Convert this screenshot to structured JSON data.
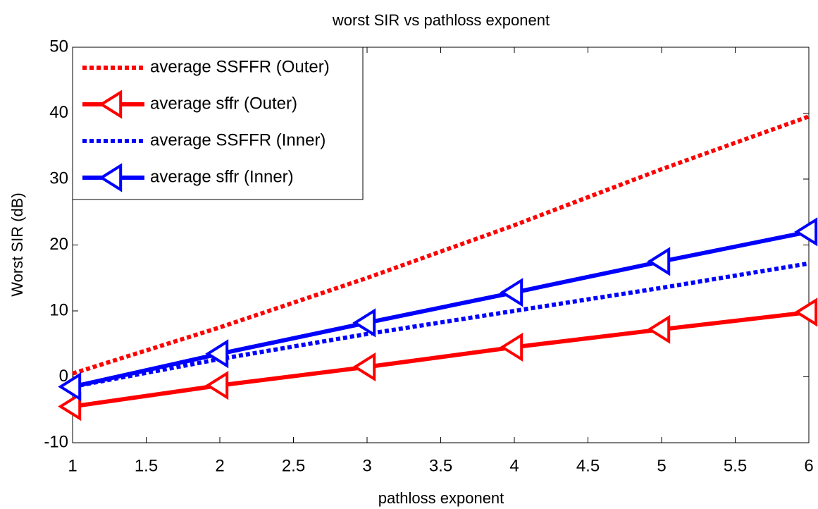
{
  "chart_data": {
    "type": "line",
    "title": "worst SIR vs pathloss exponent",
    "xlabel": "pathloss exponent",
    "ylabel": "Worst SIR (dB)",
    "x": [
      1,
      2,
      3,
      4,
      5,
      6
    ],
    "series": [
      {
        "name": "average SSFFR (Outer)",
        "color": "#ff0000",
        "linestyle": "dotted",
        "marker": "none",
        "values": [
          0.5,
          7.5,
          15,
          23,
          31.5,
          39.5
        ]
      },
      {
        "name": "average sffr (Outer)",
        "color": "#ff0000",
        "linestyle": "solid",
        "marker": "<",
        "values": [
          -4.5,
          -1.3,
          1.5,
          4.5,
          7.2,
          9.8
        ]
      },
      {
        "name": "average SSFFR (Inner)",
        "color": "#0000ff",
        "linestyle": "dotted",
        "marker": "none",
        "values": [
          -1.5,
          2.7,
          6.5,
          10,
          13.5,
          17.2
        ]
      },
      {
        "name": "average sffr (Inner)",
        "color": "#0000ff",
        "linestyle": "solid",
        "marker": "<",
        "values": [
          -1.5,
          3.5,
          8.2,
          12.8,
          17.5,
          22
        ]
      }
    ],
    "xlim": [
      1,
      6
    ],
    "xticks": [
      1,
      1.5,
      2,
      2.5,
      3,
      3.5,
      4,
      4.5,
      5,
      5.5,
      6
    ],
    "ylim": [
      -10,
      50
    ],
    "yticks": [
      -10,
      0,
      10,
      20,
      30,
      40,
      50
    ],
    "grid": false,
    "legend": "upper left"
  }
}
